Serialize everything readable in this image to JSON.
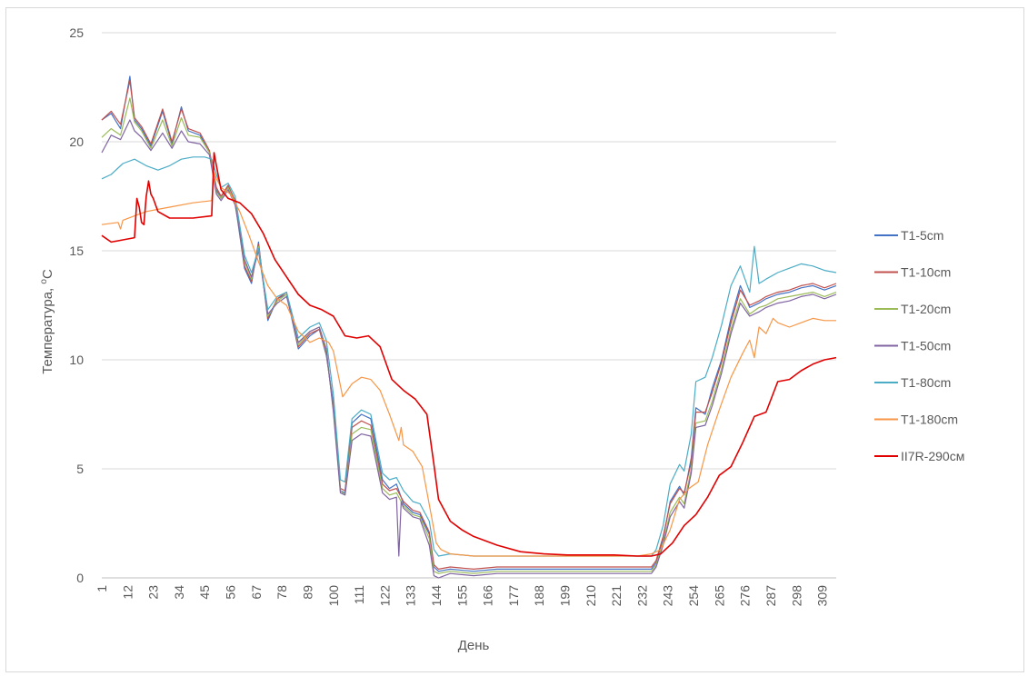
{
  "chart_data": {
    "type": "line",
    "title": "",
    "xlabel": "День",
    "ylabel": "Температура, ",
    "ylabel_sup": "o",
    "ylabel_unit": "C",
    "ylim": [
      0,
      25
    ],
    "yticks": [
      0,
      5,
      10,
      15,
      20,
      25
    ],
    "xlim": [
      1,
      315
    ],
    "xticks": [
      "1",
      "12",
      "23",
      "34",
      "45",
      "56",
      "67",
      "78",
      "89",
      "100",
      "111",
      "122",
      "133",
      "144",
      "155",
      "166",
      "177",
      "188",
      "199",
      "210",
      "221",
      "232",
      "243",
      "254",
      "265",
      "276",
      "287",
      "298",
      "309"
    ],
    "grid": "horizontal",
    "legend": "right",
    "series": [
      {
        "name": "T1-5cm",
        "color": "#4472c4",
        "x": [
          1,
          5,
          9,
          13,
          15,
          18,
          22,
          27,
          31,
          35,
          38,
          43,
          47,
          50,
          52,
          55,
          58,
          62,
          65,
          68,
          72,
          76,
          80,
          85,
          90,
          94,
          97,
          100,
          103,
          105,
          108,
          112,
          116,
          121,
          124,
          127,
          130,
          134,
          137,
          141,
          143,
          145,
          150,
          160,
          170,
          180,
          190,
          200,
          210,
          220,
          230,
          236,
          238,
          241,
          244,
          248,
          250,
          253,
          255,
          259,
          262,
          266,
          270,
          274,
          278,
          282,
          285,
          290,
          295,
          300,
          305,
          310,
          315
        ],
        "y": [
          21,
          21.3,
          20.6,
          23,
          21,
          20.6,
          19.8,
          21.4,
          19.9,
          21.6,
          20.5,
          20.3,
          19.5,
          17.8,
          17.4,
          18,
          17.2,
          14.2,
          13.5,
          15.4,
          11.8,
          12.8,
          13,
          10.5,
          11.1,
          11.4,
          10.2,
          8,
          4,
          3.9,
          7.1,
          7.5,
          7.3,
          4.5,
          4.1,
          4.3,
          3.4,
          3,
          2.9,
          2,
          0.5,
          0.3,
          0.4,
          0.3,
          0.4,
          0.4,
          0.4,
          0.4,
          0.4,
          0.4,
          0.4,
          0.4,
          0.7,
          1.8,
          3.5,
          4.2,
          3.8,
          5.5,
          7.8,
          7.5,
          8.7,
          10,
          11.9,
          13.4,
          12.4,
          12.6,
          12.8,
          13,
          13.1,
          13.3,
          13.4,
          13.2,
          13.4
        ]
      },
      {
        "name": "T1-10cm",
        "color": "#c0504d",
        "x": [
          1,
          5,
          9,
          13,
          15,
          18,
          22,
          27,
          31,
          35,
          38,
          43,
          47,
          50,
          52,
          55,
          58,
          62,
          65,
          68,
          72,
          76,
          80,
          85,
          90,
          94,
          97,
          100,
          103,
          105,
          108,
          112,
          116,
          121,
          124,
          127,
          130,
          134,
          137,
          141,
          143,
          145,
          150,
          160,
          170,
          180,
          190,
          200,
          210,
          220,
          230,
          236,
          238,
          241,
          244,
          248,
          250,
          253,
          255,
          259,
          262,
          266,
          270,
          274,
          278,
          282,
          285,
          290,
          295,
          300,
          305,
          310,
          315
        ],
        "y": [
          21,
          21.4,
          20.8,
          22.8,
          21.1,
          20.7,
          19.9,
          21.5,
          20,
          21.5,
          20.6,
          20.4,
          19.6,
          17.9,
          17.5,
          18,
          17.3,
          14.3,
          13.6,
          15.3,
          11.9,
          12.8,
          13.1,
          10.6,
          11.2,
          11.4,
          10.3,
          7.8,
          4.1,
          4,
          6.9,
          7.2,
          7,
          4.3,
          4,
          4.1,
          3.5,
          3.1,
          3,
          2.1,
          0.6,
          0.4,
          0.5,
          0.4,
          0.5,
          0.5,
          0.5,
          0.5,
          0.5,
          0.5,
          0.5,
          0.5,
          0.8,
          1.9,
          3.4,
          4.1,
          3.9,
          5.3,
          7.6,
          7.6,
          8.5,
          9.9,
          11.7,
          13.2,
          12.5,
          12.7,
          12.9,
          13.1,
          13.2,
          13.4,
          13.5,
          13.3,
          13.5
        ]
      },
      {
        "name": "T1-20cm",
        "color": "#9bbb59",
        "x": [
          1,
          5,
          9,
          13,
          15,
          18,
          22,
          27,
          31,
          35,
          38,
          43,
          47,
          50,
          52,
          55,
          58,
          62,
          65,
          68,
          72,
          76,
          80,
          85,
          90,
          94,
          97,
          100,
          103,
          105,
          108,
          112,
          116,
          121,
          124,
          127,
          130,
          134,
          137,
          141,
          143,
          145,
          150,
          160,
          170,
          180,
          190,
          200,
          210,
          220,
          230,
          236,
          238,
          241,
          244,
          248,
          250,
          253,
          255,
          259,
          262,
          266,
          270,
          274,
          278,
          282,
          285,
          290,
          295,
          300,
          305,
          310,
          315
        ],
        "y": [
          20.2,
          20.6,
          20.3,
          22,
          20.9,
          20.5,
          19.7,
          21,
          19.8,
          21.1,
          20.3,
          20.2,
          19.5,
          17.7,
          17.4,
          17.9,
          17.2,
          14.5,
          13.7,
          15.2,
          12,
          12.7,
          13,
          10.7,
          11.3,
          11.5,
          10.4,
          7.7,
          4,
          3.8,
          6.6,
          6.9,
          6.8,
          4.1,
          3.8,
          3.9,
          3.3,
          2.9,
          2.8,
          1.8,
          0.3,
          0.2,
          0.3,
          0.2,
          0.3,
          0.3,
          0.3,
          0.3,
          0.3,
          0.3,
          0.3,
          0.3,
          0.6,
          1.6,
          3,
          3.7,
          3.4,
          5,
          7.1,
          7.2,
          8.1,
          9.6,
          11.4,
          12.8,
          12.1,
          12.4,
          12.5,
          12.8,
          12.9,
          13,
          13.1,
          12.9,
          13.1
        ]
      },
      {
        "name": "T1-50cm",
        "color": "#8064a2",
        "x": [
          1,
          5,
          9,
          13,
          15,
          18,
          22,
          27,
          31,
          35,
          38,
          43,
          47,
          50,
          52,
          55,
          58,
          62,
          65,
          68,
          72,
          76,
          80,
          85,
          90,
          94,
          97,
          100,
          103,
          105,
          108,
          112,
          116,
          121,
          124,
          127,
          128,
          129,
          130,
          134,
          137,
          141,
          143,
          145,
          150,
          160,
          170,
          180,
          190,
          200,
          210,
          220,
          230,
          236,
          238,
          241,
          244,
          248,
          250,
          253,
          255,
          259,
          262,
          266,
          270,
          274,
          278,
          282,
          285,
          290,
          295,
          300,
          305,
          310,
          315
        ],
        "y": [
          19.5,
          20.3,
          20.1,
          21,
          20.5,
          20.2,
          19.6,
          20.4,
          19.7,
          20.5,
          20,
          19.9,
          19.4,
          17.6,
          17.3,
          17.8,
          17.1,
          14.6,
          13.8,
          15,
          12.1,
          12.6,
          12.9,
          10.8,
          11.3,
          11.5,
          10.5,
          7.6,
          3.9,
          3.8,
          6.3,
          6.6,
          6.5,
          3.9,
          3.6,
          3.7,
          1,
          3.5,
          3.2,
          2.8,
          2.7,
          1.5,
          0.1,
          0,
          0.2,
          0.1,
          0.2,
          0.2,
          0.2,
          0.2,
          0.2,
          0.2,
          0.2,
          0.2,
          0.5,
          1.5,
          2.8,
          3.5,
          3.2,
          4.8,
          6.9,
          7,
          7.9,
          9.4,
          11.2,
          12.6,
          12,
          12.2,
          12.4,
          12.6,
          12.7,
          12.9,
          13,
          12.8,
          13
        ]
      },
      {
        "name": "T1-80cm",
        "color": "#4bacc6",
        "x": [
          1,
          5,
          10,
          15,
          20,
          25,
          30,
          35,
          40,
          45,
          48,
          50,
          52,
          55,
          58,
          62,
          65,
          68,
          72,
          76,
          80,
          85,
          90,
          94,
          97,
          100,
          103,
          105,
          108,
          112,
          116,
          121,
          124,
          127,
          130,
          134,
          137,
          141,
          143,
          145,
          150,
          160,
          170,
          180,
          190,
          200,
          210,
          220,
          230,
          236,
          238,
          241,
          244,
          248,
          250,
          253,
          255,
          259,
          262,
          266,
          270,
          274,
          278,
          280,
          282,
          285,
          290,
          295,
          300,
          305,
          310,
          315
        ],
        "y": [
          18.3,
          18.5,
          19,
          19.2,
          18.9,
          18.7,
          18.9,
          19.2,
          19.3,
          19.3,
          19.2,
          18.5,
          17.9,
          18.1,
          17.5,
          14.8,
          14,
          15.1,
          12.3,
          12.9,
          13.1,
          11,
          11.5,
          11.7,
          10.9,
          8.4,
          4.5,
          4.4,
          7.3,
          7.7,
          7.5,
          4.8,
          4.5,
          4.6,
          4,
          3.5,
          3.4,
          2.6,
          1.3,
          1,
          1.1,
          1,
          1,
          1,
          1,
          1,
          1,
          1,
          1,
          1,
          1.3,
          2.4,
          4.3,
          5.2,
          4.9,
          6.6,
          9,
          9.2,
          10.1,
          11.6,
          13.4,
          14.3,
          13.1,
          15.2,
          13.5,
          13.7,
          14,
          14.2,
          14.4,
          14.3,
          14.1,
          14
        ]
      },
      {
        "name": "T1-180cm",
        "color": "#f79646",
        "x": [
          1,
          8,
          9,
          10,
          15,
          20,
          25,
          30,
          40,
          48,
          49,
          50,
          52,
          56,
          60,
          64,
          68,
          72,
          76,
          80,
          85,
          90,
          94,
          98,
          100,
          104,
          108,
          112,
          116,
          120,
          124,
          128,
          129,
          130,
          134,
          138,
          142,
          144,
          146,
          150,
          160,
          170,
          180,
          190,
          200,
          210,
          220,
          230,
          236,
          240,
          244,
          248,
          252,
          256,
          260,
          265,
          270,
          275,
          278,
          280,
          282,
          285,
          288,
          290,
          295,
          300,
          305,
          310,
          315
        ],
        "y": [
          16.2,
          16.3,
          16,
          16.4,
          16.6,
          16.8,
          16.9,
          17,
          17.2,
          17.3,
          18.6,
          18.3,
          17.9,
          17.6,
          16.8,
          15.7,
          14.5,
          13.4,
          12.8,
          12.5,
          11.3,
          10.8,
          11,
          10.8,
          10.4,
          8.3,
          8.9,
          9.2,
          9.1,
          8.6,
          7.5,
          6.3,
          6.9,
          6.1,
          5.8,
          5.1,
          2.8,
          1.6,
          1.3,
          1.1,
          1,
          1,
          1,
          1,
          1,
          1,
          1,
          1,
          1.1,
          1.3,
          2.2,
          3.6,
          4.1,
          4.4,
          6.1,
          7.7,
          9.2,
          10.3,
          10.9,
          10.1,
          11.5,
          11.2,
          11.9,
          11.7,
          11.5,
          11.7,
          11.9,
          11.8,
          11.8
        ]
      },
      {
        "name": "II7R-290см",
        "color": "#e00000",
        "x": [
          1,
          5,
          10,
          15,
          16,
          17,
          18,
          19,
          20,
          21,
          22,
          23,
          24,
          25,
          30,
          40,
          48,
          49,
          50,
          52,
          55,
          60,
          65,
          70,
          75,
          80,
          85,
          90,
          95,
          100,
          105,
          110,
          115,
          120,
          125,
          130,
          135,
          140,
          143,
          145,
          150,
          155,
          160,
          170,
          180,
          190,
          200,
          210,
          220,
          230,
          236,
          240,
          245,
          250,
          255,
          260,
          265,
          270,
          275,
          280,
          285,
          290,
          295,
          300,
          305,
          310,
          315
        ],
        "y": [
          15.7,
          15.4,
          15.5,
          15.6,
          17.4,
          17,
          16.3,
          16.2,
          17.5,
          18.2,
          17.6,
          17.4,
          17.1,
          16.8,
          16.5,
          16.5,
          16.6,
          19.5,
          18.9,
          17.8,
          17.4,
          17.2,
          16.7,
          15.8,
          14.6,
          13.8,
          13,
          12.5,
          12.3,
          12,
          11.1,
          11,
          11.1,
          10.6,
          9.1,
          8.6,
          8.2,
          7.5,
          5.2,
          3.6,
          2.6,
          2.2,
          1.9,
          1.5,
          1.2,
          1.1,
          1.05,
          1.05,
          1.05,
          1,
          1,
          1.1,
          1.6,
          2.4,
          2.9,
          3.7,
          4.7,
          5.1,
          6.2,
          7.4,
          7.6,
          9,
          9.1,
          9.5,
          9.8,
          10,
          10.1
        ]
      }
    ]
  }
}
